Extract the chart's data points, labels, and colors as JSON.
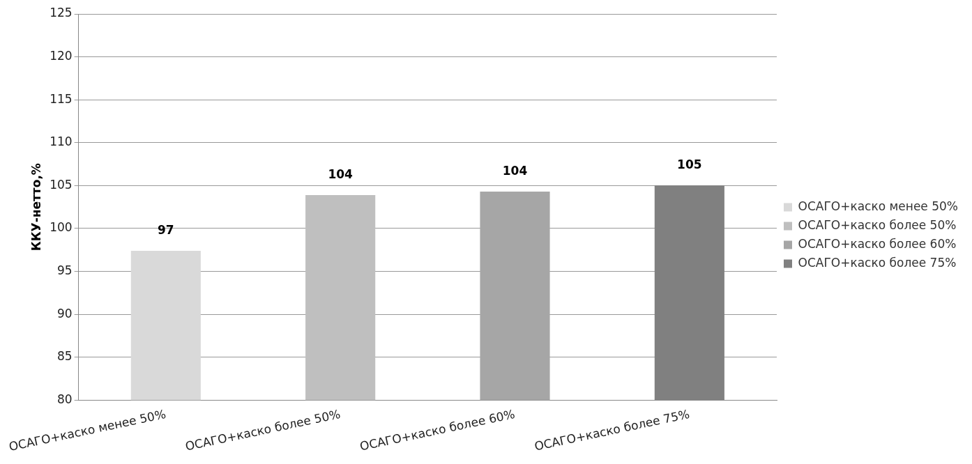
{
  "chart_data": {
    "type": "bar",
    "ylabel": "ККУ-нетто,%",
    "categories": [
      "ОСАГО+каско менее 50%",
      "ОСАГО+каско более 50%",
      "ОСАГО+каско более 60%",
      "ОСАГО+каско более 75%"
    ],
    "series": [
      {
        "name": "ОСАГО+каско менее 50%",
        "color": "#d9d9d9",
        "values": [
          97.4,
          null,
          null,
          null
        ],
        "value_labels": [
          "97",
          null,
          null,
          null
        ]
      },
      {
        "name": "ОСАГО+каско более 50%",
        "color": "#bfbfbf",
        "values": [
          null,
          103.9,
          null,
          null
        ],
        "value_labels": [
          null,
          "104",
          null,
          null
        ]
      },
      {
        "name": "ОСАГО+каско более 60%",
        "color": "#a6a6a6",
        "values": [
          null,
          null,
          104.3,
          null
        ],
        "value_labels": [
          null,
          null,
          "104",
          null
        ]
      },
      {
        "name": "ОСАГО+каско более 75%",
        "color": "#808080",
        "values": [
          null,
          null,
          null,
          105.0
        ],
        "value_labels": [
          null,
          null,
          null,
          "105"
        ]
      }
    ],
    "ylim": [
      80,
      125
    ],
    "yticks": [
      80,
      85,
      90,
      95,
      100,
      105,
      110,
      115,
      120,
      125
    ],
    "grid": "y",
    "legend": "right"
  }
}
